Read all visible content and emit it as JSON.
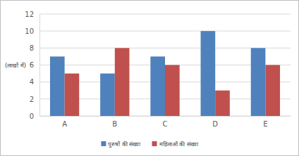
{
  "chart_data": {
    "type": "bar",
    "y_label": "(लाखों में)",
    "categories": [
      "A",
      "B",
      "C",
      "D",
      "E"
    ],
    "series": [
      {
        "name": "पुरुषों की संख्या",
        "color": "#4f81bd",
        "values": [
          7,
          5,
          7,
          10,
          8
        ]
      },
      {
        "name": "महिलाओं की संख्या",
        "color": "#c0504d",
        "values": [
          5,
          8,
          6,
          3,
          6
        ]
      }
    ],
    "ylim": [
      0,
      12
    ],
    "yticks": [
      0,
      2,
      4,
      6,
      8,
      10,
      12
    ],
    "grid": true,
    "legend": "bottom"
  }
}
